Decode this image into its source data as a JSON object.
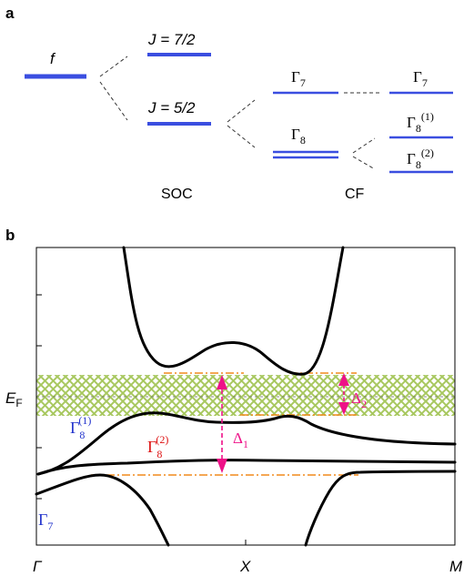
{
  "panel_a": {
    "panel_label": "a",
    "f_label": "f",
    "soc_upper_label": "J = 7/2",
    "soc_lower_label": "J = 5/2",
    "cf_gamma7_symbol": "Γ",
    "cf_gamma7_sub": "7",
    "cf_gamma8_symbol": "Γ",
    "cf_gamma8_sub": "8",
    "right_gamma7_symbol": "Γ",
    "right_gamma7_sub": "7",
    "right_gamma8_1_symbol": "Γ",
    "right_gamma8_1_sub": "8",
    "right_gamma8_1_sup": "(1)",
    "right_gamma8_2_symbol": "Γ",
    "right_gamma8_2_sub": "8",
    "right_gamma8_2_sup": "(2)",
    "soc_caption": "SOC",
    "cf_caption": "CF",
    "level_color": "#3a4ee0"
  },
  "panel_b": {
    "panel_label": "b",
    "ef_main": "E",
    "ef_sub": "F",
    "band_g8_1_symbol": "Γ",
    "band_g8_1_sub": "8",
    "band_g8_1_sup": "(1)",
    "band_g8_2_symbol": "Γ",
    "band_g8_2_sub": "8",
    "band_g8_2_sup": "(2)",
    "band_g7_symbol": "Γ",
    "band_g7_sub": "7",
    "delta1_symbol": "Δ",
    "delta1_sub": "1",
    "delta2_symbol": "Δ",
    "delta2_sub": "2",
    "kpoints": [
      "Γ",
      "X",
      "M"
    ],
    "colors": {
      "gamma8_1": "#2233cc",
      "gamma8_2": "#dd1111",
      "gamma7": "#2233cc",
      "delta": "#ee1188",
      "guide": "#f08a1c",
      "hatch": "#a8c860"
    }
  }
}
